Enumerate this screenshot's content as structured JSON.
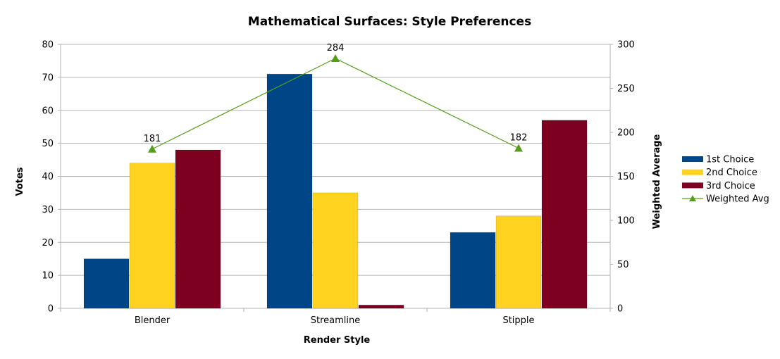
{
  "chart_data": {
    "type": "bar",
    "title": "Mathematical Surfaces: Style Preferences",
    "xlabel": "Render Style",
    "ylabel": "Votes",
    "y2label": "Weighted Average",
    "categories": [
      "Blender",
      "Streamline",
      "Stipple"
    ],
    "ylim": [
      0,
      80
    ],
    "y_ticks": [
      0,
      10,
      20,
      30,
      40,
      50,
      60,
      70,
      80
    ],
    "y2lim": [
      0,
      300
    ],
    "y2_ticks": [
      0,
      50,
      100,
      150,
      200,
      250,
      300
    ],
    "grid": true,
    "legend_position": "right",
    "series": [
      {
        "name": "1st Choice",
        "kind": "bar",
        "axis": "left",
        "color": "#004586",
        "values": [
          15,
          71,
          23
        ]
      },
      {
        "name": "2nd Choice",
        "kind": "bar",
        "axis": "left",
        "color": "#ffd320",
        "values": [
          44,
          35,
          28
        ]
      },
      {
        "name": "3rd Choice",
        "kind": "bar",
        "axis": "left",
        "color": "#7e0021",
        "values": [
          48,
          1,
          57
        ]
      },
      {
        "name": "Weighted Avg",
        "kind": "line",
        "axis": "right",
        "color": "#579d1c",
        "marker": "triangle",
        "values": [
          181,
          284,
          182
        ],
        "labels": [
          "181",
          "284",
          "182"
        ]
      }
    ]
  }
}
